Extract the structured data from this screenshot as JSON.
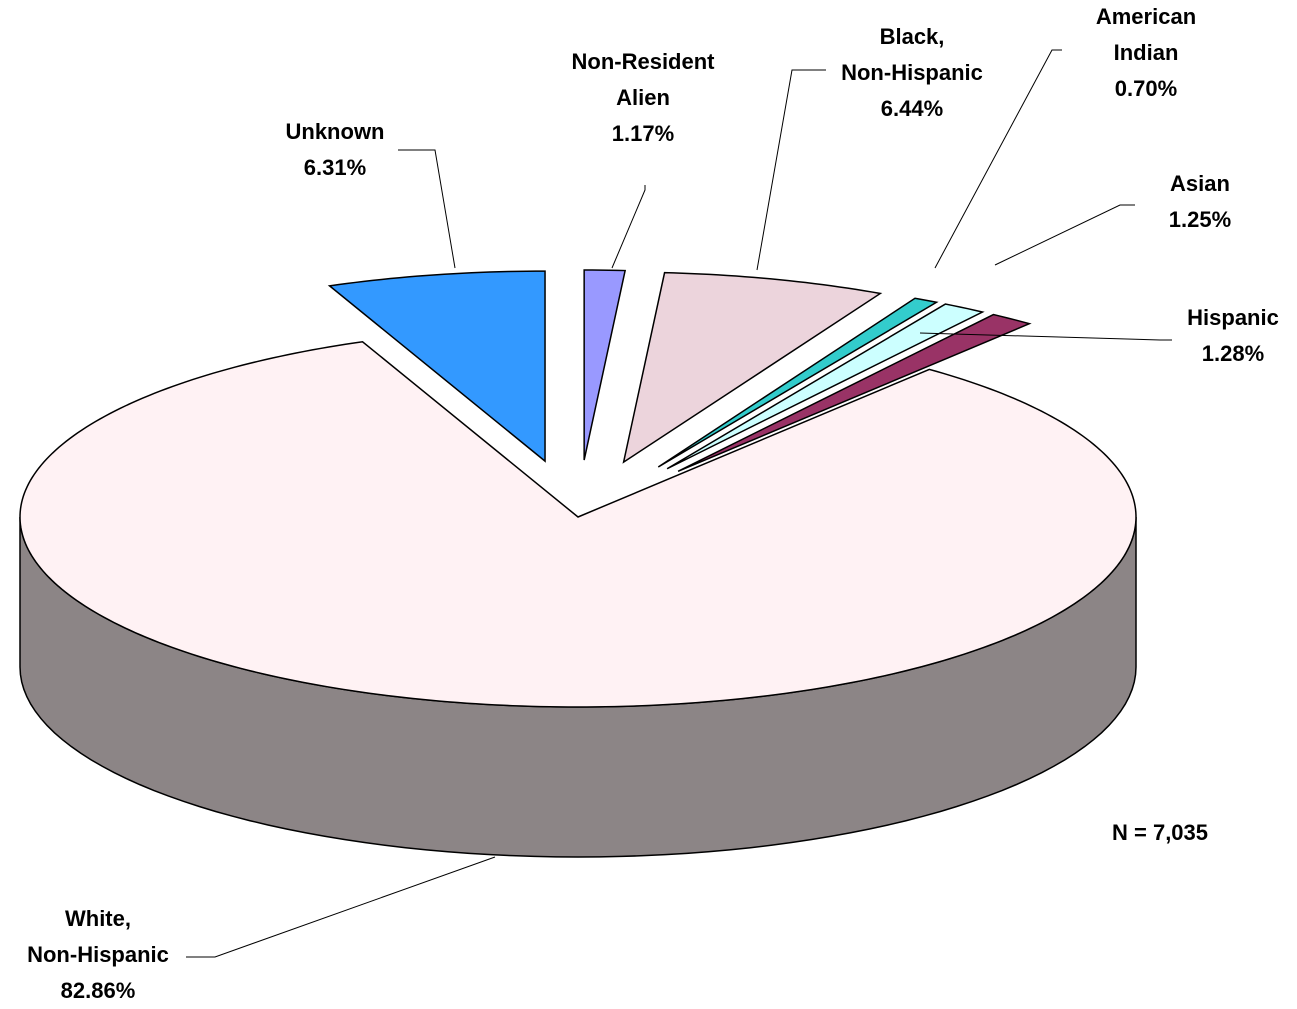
{
  "chart_data": {
    "type": "pie",
    "categories": [
      "Non-Resident\nAlien",
      "Black,\nNon-Hispanic",
      "American\nIndian",
      "Asian",
      "Hispanic",
      "White,\nNon-Hispanic",
      "Unknown"
    ],
    "values": [
      1.17,
      6.44,
      0.7,
      1.25,
      1.28,
      82.86,
      6.31
    ],
    "value_labels": [
      "1.17%",
      "6.44%",
      "0.70%",
      "1.25%",
      "1.28%",
      "82.86%",
      "6.31%"
    ],
    "colors": [
      "#9999ff",
      "#ecd4dc",
      "#33cccc",
      "#ccffff",
      "#993366",
      "#fff2f4",
      "#3399ff"
    ],
    "annotation": "N = 7,035"
  }
}
